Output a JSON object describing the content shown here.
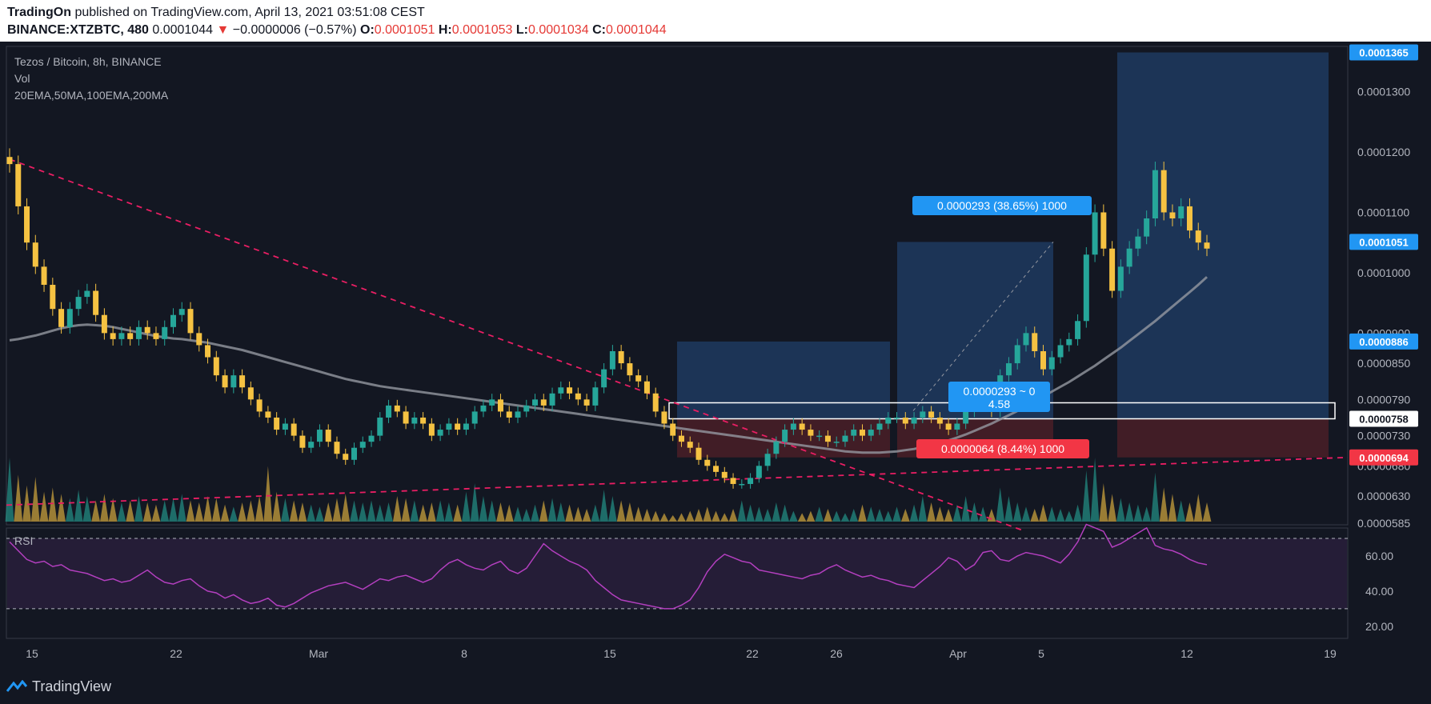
{
  "header": {
    "publisher": "TradingOn",
    "published_text": "published on TradingView.com, April 13, 2021 03:51:08 CEST",
    "symbol": "BINANCE:XTZBTC, 480",
    "last": "0.0001044",
    "change_arrow": "▼",
    "change": "−0.0000006 (−0.57%)",
    "o_label": "O:",
    "o_val": "0.0001051",
    "h_label": "H:",
    "h_val": "0.0001053",
    "l_label": "L:",
    "l_val": "0.0001034",
    "c_label": "C:",
    "c_val": "0.0001044"
  },
  "legend": {
    "title": "Tezos / Bitcoin, 8h, BINANCE",
    "vol": "Vol",
    "indicators": "20EMA,50MA,100EMA,200MA"
  },
  "colors": {
    "background": "#131722",
    "up": "#26a69a",
    "down": "#f5c242",
    "trendline": "#e91e63",
    "ma": "#9598a1",
    "rsi": "#b33fbf",
    "profit_box": "#1e3a5f",
    "loss_box": "#4a1e27",
    "label_blue": "#2196f3",
    "label_red": "#f23645"
  },
  "chart_data": {
    "type": "candlestick",
    "x_ticks": [
      "15",
      "22",
      "Mar",
      "8",
      "15",
      "22",
      "26",
      "Apr",
      "5",
      "12",
      "19"
    ],
    "y_ticks": [
      "0.0001300",
      "0.0001200",
      "0.0001100",
      "0.0001000",
      "0.0000900",
      "0.0000850",
      "0.0000790",
      "0.0000730",
      "0.0000680",
      "0.0000630",
      "0.0000585"
    ],
    "ylim": [
      5.85e-05,
      0.0001375
    ],
    "price_labels": [
      {
        "text": "0.0001365",
        "price": 0.0001365,
        "style": "blue"
      },
      {
        "text": "0.0001051",
        "price": 0.0001051,
        "style": "blue"
      },
      {
        "text": "0.0000886",
        "price": 8.86e-05,
        "style": "blue"
      },
      {
        "text": "0.0000758",
        "price": 7.58e-05,
        "style": "white"
      },
      {
        "text": "0.0000694",
        "price": 6.94e-05,
        "style": "red"
      }
    ],
    "closes": [
      0.000118,
      0.000111,
      0.000105,
      0.000101,
      9.8e-05,
      9.4e-05,
      9.1e-05,
      9.4e-05,
      9.6e-05,
      9.7e-05,
      9.3e-05,
      9e-05,
      8.9e-05,
      9e-05,
      8.9e-05,
      9.1e-05,
      9e-05,
      8.9e-05,
      9.1e-05,
      9.3e-05,
      9.4e-05,
      9e-05,
      8.8e-05,
      8.6e-05,
      8.3e-05,
      8.1e-05,
      8.3e-05,
      8.1e-05,
      7.9e-05,
      7.7e-05,
      7.6e-05,
      7.4e-05,
      7.5e-05,
      7.3e-05,
      7.1e-05,
      7.2e-05,
      7.4e-05,
      7.2e-05,
      7e-05,
      6.9e-05,
      7.1e-05,
      7.2e-05,
      7.3e-05,
      7.6e-05,
      7.8e-05,
      7.7e-05,
      7.5e-05,
      7.6e-05,
      7.5e-05,
      7.3e-05,
      7.4e-05,
      7.5e-05,
      7.4e-05,
      7.5e-05,
      7.7e-05,
      7.8e-05,
      7.9e-05,
      7.7e-05,
      7.6e-05,
      7.7e-05,
      7.8e-05,
      7.9e-05,
      7.8e-05,
      8e-05,
      8.1e-05,
      8e-05,
      7.9e-05,
      7.8e-05,
      8.1e-05,
      8.4e-05,
      8.7e-05,
      8.5e-05,
      8.3e-05,
      8.2e-05,
      8e-05,
      7.7e-05,
      7.5e-05,
      7.3e-05,
      7.2e-05,
      7.1e-05,
      6.9e-05,
      6.8e-05,
      6.7e-05,
      6.6e-05,
      6.5e-05,
      6.5e-05,
      6.6e-05,
      6.8e-05,
      7e-05,
      7.2e-05,
      7.4e-05,
      7.5e-05,
      7.4e-05,
      7.3e-05,
      7.3e-05,
      7.2e-05,
      7.2e-05,
      7.3e-05,
      7.4e-05,
      7.3e-05,
      7.4e-05,
      7.5e-05,
      7.6e-05,
      7.6e-05,
      7.5e-05,
      7.6e-05,
      7.7e-05,
      7.6e-05,
      7.5e-05,
      7.4e-05,
      7.5e-05,
      7.7e-05,
      7.9e-05,
      8e-05,
      7.7e-05,
      8.3e-05,
      8.5e-05,
      8.8e-05,
      9e-05,
      8.7e-05,
      8.4e-05,
      8.6e-05,
      8.8e-05,
      8.9e-05,
      9.2e-05,
      0.000103,
      0.00011,
      0.000104,
      9.7e-05,
      0.000101,
      0.000104,
      0.000106,
      0.000109,
      0.000117,
      0.00011,
      0.000109,
      0.000111,
      0.000107,
      0.000105,
      0.000104
    ]
  },
  "drawings": {
    "long_label_top": "0.0000293 (38.65%) 1000",
    "long_label_mid_line1": "0.0000293 ~ 0",
    "long_label_mid_line2": "4.58",
    "short_label": "0.0000064 (8.44%) 1000"
  },
  "rsi": {
    "label": "RSI",
    "y_ticks": [
      "60.00",
      "40.00",
      "20.00"
    ],
    "upper_band": 70,
    "lower_band": 30,
    "ylim": [
      14,
      75
    ],
    "values": [
      68,
      63,
      58,
      56,
      57,
      54,
      55,
      52,
      51,
      50,
      48,
      46,
      47,
      45,
      46,
      49,
      52,
      48,
      45,
      44,
      46,
      47,
      43,
      40,
      39,
      36,
      38,
      35,
      33,
      34,
      36,
      32,
      31,
      33,
      36,
      39,
      41,
      43,
      44,
      45,
      43,
      41,
      44,
      47,
      46,
      48,
      49,
      47,
      45,
      47,
      52,
      56,
      58,
      55,
      53,
      52,
      55,
      57,
      52,
      50,
      53,
      60,
      67,
      63,
      60,
      57,
      55,
      52,
      46,
      42,
      38,
      35,
      34,
      33,
      32,
      31,
      30,
      30,
      32,
      35,
      42,
      51,
      57,
      61,
      59,
      57,
      56,
      52,
      51,
      50,
      49,
      48,
      47,
      49,
      50,
      53,
      55,
      52,
      50,
      48,
      49,
      47,
      46,
      44,
      43,
      42,
      46,
      50,
      54,
      59,
      57,
      52,
      55,
      62,
      63,
      58,
      57,
      60,
      62,
      61,
      60,
      58,
      56,
      61,
      68,
      78,
      76,
      74,
      65,
      67,
      70,
      73,
      76,
      66,
      64,
      63,
      61,
      58,
      56,
      55
    ]
  },
  "volume": {
    "values": [
      3,
      2.2,
      1.7,
      2.1,
      1.4,
      1.6,
      1.3,
      1.1,
      1.5,
      1.2,
      1.0,
      1.3,
      1.1,
      0.9,
      1.0,
      1.2,
      0.9,
      0.8,
      1.0,
      1.1,
      1.3,
      1.0,
      0.9,
      1.2,
      1.1,
      0.8,
      0.7,
      0.9,
      1.0,
      1.2,
      2.6,
      1.4,
      1.1,
      1.0,
      0.9,
      0.8,
      0.7,
      0.9,
      1.1,
      1.3,
      1.0,
      0.9,
      1.0,
      0.8,
      0.9,
      1.2,
      1.1,
      1.0,
      0.8,
      0.9,
      1.0,
      0.9,
      0.8,
      1.4,
      1.8,
      1.2,
      1.0,
      0.9,
      0.8,
      0.7,
      0.6,
      0.8,
      1.0,
      1.1,
      0.9,
      0.8,
      0.7,
      0.6,
      0.8,
      1.5,
      1.2,
      1.0,
      0.9,
      0.7,
      0.6,
      0.5,
      0.4,
      0.3,
      0.4,
      0.5,
      0.6,
      0.7,
      0.5,
      0.4,
      0.6,
      1.0,
      0.8,
      0.7,
      0.6,
      0.9,
      0.8,
      0.5,
      0.4,
      0.5,
      0.7,
      0.6,
      0.5,
      0.4,
      0.6,
      0.8,
      0.7,
      0.6,
      0.5,
      0.7,
      0.6,
      0.8,
      1.2,
      0.9,
      0.7,
      0.6,
      0.8,
      1.2,
      0.9,
      0.7,
      0.6,
      1.6,
      1.2,
      0.9,
      0.7,
      0.6,
      0.8,
      0.7,
      0.6,
      0.5,
      0.8,
      2.4,
      3.0,
      1.8,
      1.3,
      1.1,
      0.9,
      0.8,
      0.7,
      2.3,
      1.6,
      1.3,
      1.0,
      0.9,
      1.3,
      0.9
    ]
  },
  "ma": [
    8.88e-05,
    8.9e-05,
    8.93e-05,
    8.96e-05,
    9e-05,
    9.04e-05,
    9.08e-05,
    9.11e-05,
    9.13e-05,
    9.14e-05,
    9.13e-05,
    9.12e-05,
    9.1e-05,
    9.07e-05,
    9.04e-05,
    9.01e-05,
    8.98e-05,
    8.95e-05,
    8.93e-05,
    8.91e-05,
    8.9e-05,
    8.88e-05,
    8.86e-05,
    8.84e-05,
    8.81e-05,
    8.78e-05,
    8.75e-05,
    8.72e-05,
    8.68e-05,
    8.64e-05,
    8.6e-05,
    8.56e-05,
    8.52e-05,
    8.48e-05,
    8.44e-05,
    8.4e-05,
    8.36e-05,
    8.32e-05,
    8.28e-05,
    8.24e-05,
    8.21e-05,
    8.18e-05,
    8.15e-05,
    8.12e-05,
    8.1e-05,
    8.08e-05,
    8.06e-05,
    8.04e-05,
    8.02e-05,
    8e-05,
    7.98e-05,
    7.96e-05,
    7.94e-05,
    7.92e-05,
    7.9e-05,
    7.88e-05,
    7.86e-05,
    7.84e-05,
    7.82e-05,
    7.8e-05,
    7.78e-05,
    7.76e-05,
    7.74e-05,
    7.72e-05,
    7.7e-05,
    7.68e-05,
    7.66e-05,
    7.64e-05,
    7.62e-05,
    7.6e-05,
    7.58e-05,
    7.56e-05,
    7.54e-05,
    7.52e-05,
    7.5e-05,
    7.48e-05,
    7.46e-05,
    7.44e-05,
    7.42e-05,
    7.4e-05,
    7.38e-05,
    7.36e-05,
    7.34e-05,
    7.32e-05,
    7.3e-05,
    7.28e-05,
    7.26e-05,
    7.24e-05,
    7.22e-05,
    7.2e-05,
    7.18e-05,
    7.16e-05,
    7.14e-05,
    7.12e-05,
    7.1e-05,
    7.08e-05,
    7.06e-05,
    7.04e-05,
    7.03e-05,
    7.02e-05,
    7.02e-05,
    7.02e-05,
    7.03e-05,
    7.04e-05,
    7.06e-05,
    7.08e-05,
    7.11e-05,
    7.14e-05,
    7.18e-05,
    7.22e-05,
    7.27e-05,
    7.32e-05,
    7.38e-05,
    7.44e-05,
    7.5e-05,
    7.57e-05,
    7.64e-05,
    7.71e-05,
    7.79e-05,
    7.87e-05,
    7.95e-05,
    8.03e-05,
    8.11e-05,
    8.19e-05,
    8.28e-05,
    8.37e-05,
    8.46e-05,
    8.56e-05,
    8.66e-05,
    8.76e-05,
    8.87e-05,
    8.98e-05,
    9.09e-05,
    9.2e-05,
    9.32e-05,
    9.44e-05,
    9.56e-05,
    9.68e-05,
    9.8e-05,
    9.93e-05
  ],
  "footer": {
    "brand": "TradingView"
  }
}
